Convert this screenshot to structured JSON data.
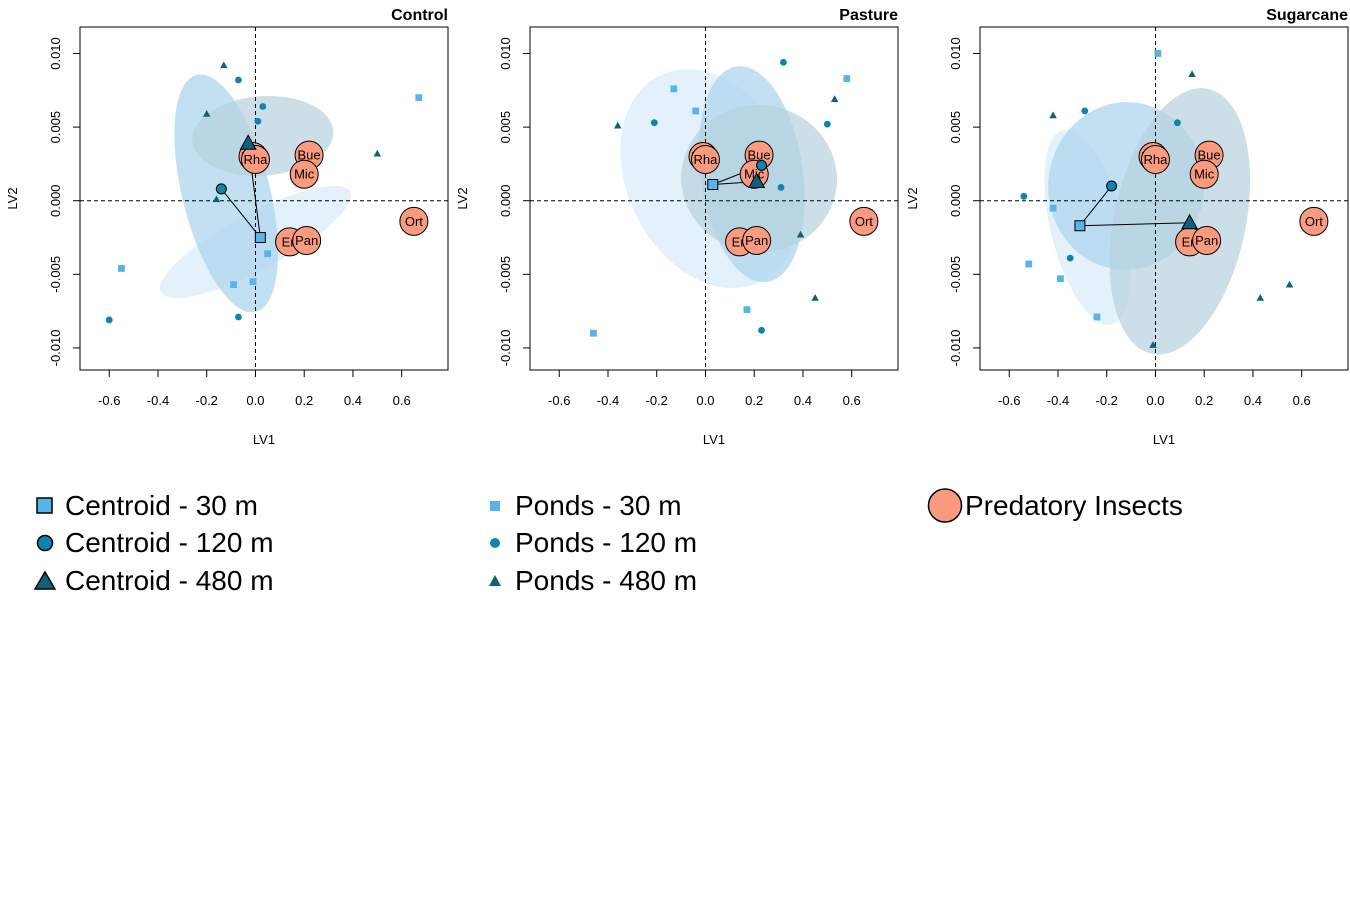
{
  "colors": {
    "light": "#56b4e9",
    "mid": "#0f84b0",
    "dark": "#0e6178",
    "predator": "#fa9a7e",
    "ellipse_light": "#d7ebf8",
    "ellipse_mid": "#a9d3ec",
    "ellipse_dark": "#b7d1de"
  },
  "legend": {
    "centroids": [
      {
        "label": "Centroid - 30 m",
        "shape": "square"
      },
      {
        "label": "Centroid - 120 m",
        "shape": "circle"
      },
      {
        "label": "Centroid - 480 m",
        "shape": "triangle"
      }
    ],
    "ponds": [
      {
        "label": "Ponds - 30 m",
        "shape": "square"
      },
      {
        "label": "Ponds - 120 m",
        "shape": "circle"
      },
      {
        "label": "Ponds - 480 m",
        "shape": "triangle"
      }
    ],
    "predators": {
      "label": "Predatory Insects",
      "shape": "big-circle"
    }
  },
  "chart_data": [
    {
      "type": "scatter",
      "title": "Control",
      "xlabel": "LV1",
      "ylabel": "LV2",
      "xlim": [
        -0.72,
        0.79
      ],
      "ylim": [
        -0.0115,
        0.0118
      ],
      "xticks": [
        "-0.6",
        "-0.4",
        "-0.2",
        "0.0",
        "0.2",
        "0.4",
        "0.6"
      ],
      "xtick_values": [
        -0.6,
        -0.4,
        -0.2,
        0.0,
        0.2,
        0.4,
        0.6
      ],
      "yticks": [
        "-0.010",
        "-0.005",
        "0.000",
        "0.005",
        "0.010"
      ],
      "ytick_values": [
        -0.01,
        -0.005,
        0.0,
        0.005,
        0.01
      ],
      "reference_lines": {
        "x": 0,
        "y": 0
      },
      "ellipses": [
        {
          "group": "30 m",
          "cx": 0.0,
          "cy": -0.0028,
          "rx": 0.44,
          "ry": 0.0019,
          "angle": 28,
          "fill": "light"
        },
        {
          "group": "120 m",
          "cx": -0.12,
          "cy": 0.0005,
          "rx": 0.18,
          "ry": 0.0083,
          "angle": 14,
          "fill": "mid"
        },
        {
          "group": "480 m",
          "cx": 0.03,
          "cy": 0.0044,
          "rx": 0.29,
          "ry": 0.0027,
          "angle": 4,
          "fill": "dark"
        }
      ],
      "centroids": [
        {
          "group": "30 m",
          "x": 0.02,
          "y": -0.0025
        },
        {
          "group": "120 m",
          "x": -0.14,
          "y": 0.0008
        },
        {
          "group": "480 m",
          "x": -0.03,
          "y": 0.0039
        }
      ],
      "ponds": [
        {
          "group": "30 m",
          "x": -0.55,
          "y": -0.0046
        },
        {
          "group": "30 m",
          "x": -0.09,
          "y": -0.0057
        },
        {
          "group": "30 m",
          "x": -0.01,
          "y": -0.0055
        },
        {
          "group": "30 m",
          "x": 0.05,
          "y": -0.0036
        },
        {
          "group": "30 m",
          "x": 0.67,
          "y": 0.007
        },
        {
          "group": "120 m",
          "x": -0.6,
          "y": -0.0081
        },
        {
          "group": "120 m",
          "x": -0.07,
          "y": -0.0079
        },
        {
          "group": "120 m",
          "x": -0.07,
          "y": 0.0082
        },
        {
          "group": "120 m",
          "x": 0.03,
          "y": 0.0064
        },
        {
          "group": "120 m",
          "x": 0.01,
          "y": 0.0054
        },
        {
          "group": "480 m",
          "x": -0.13,
          "y": 0.0092
        },
        {
          "group": "480 m",
          "x": -0.2,
          "y": 0.0059
        },
        {
          "group": "480 m",
          "x": -0.16,
          "y": 0.0001
        },
        {
          "group": "480 m",
          "x": 0.5,
          "y": 0.0032
        }
      ],
      "predators": [
        {
          "label": "Rha",
          "x": -0.01,
          "y": 0.003
        },
        {
          "label": "Rha",
          "x": 0.0,
          "y": 0.0028
        },
        {
          "label": "Bue",
          "x": 0.22,
          "y": 0.0031
        },
        {
          "label": "Mic",
          "x": 0.2,
          "y": 0.0018
        },
        {
          "label": "Eri",
          "x": 0.14,
          "y": -0.0028
        },
        {
          "label": "Pan",
          "x": 0.21,
          "y": -0.0027
        },
        {
          "label": "Ort",
          "x": 0.65,
          "y": -0.0014
        }
      ]
    },
    {
      "type": "scatter",
      "title": "Pasture",
      "xlabel": "LV1",
      "ylabel": "LV2",
      "xlim": [
        -0.72,
        0.79
      ],
      "ylim": [
        -0.0115,
        0.0118
      ],
      "xticks": [
        "-0.6",
        "-0.4",
        "-0.2",
        "0.0",
        "0.2",
        "0.4",
        "0.6"
      ],
      "xtick_values": [
        -0.6,
        -0.4,
        -0.2,
        0.0,
        0.2,
        0.4,
        0.6
      ],
      "yticks": [
        "-0.010",
        "-0.005",
        "0.000",
        "0.005",
        "0.010"
      ],
      "ytick_values": [
        -0.01,
        -0.005,
        0.0,
        0.005,
        0.01
      ],
      "reference_lines": {
        "x": 0,
        "y": 0
      },
      "ellipses": [
        {
          "group": "30 m",
          "cx": 0.02,
          "cy": 0.0015,
          "rx": 0.34,
          "ry": 0.0078,
          "angle": 26,
          "fill": "light"
        },
        {
          "group": "120 m",
          "cx": 0.19,
          "cy": 0.0018,
          "rx": 0.21,
          "ry": 0.0074,
          "angle": 8,
          "fill": "mid"
        },
        {
          "group": "480 m",
          "cx": 0.22,
          "cy": 0.0015,
          "rx": 0.32,
          "ry": 0.005,
          "angle": -6,
          "fill": "dark"
        }
      ],
      "centroids": [
        {
          "group": "30 m",
          "x": 0.03,
          "y": 0.0011
        },
        {
          "group": "120 m",
          "x": 0.23,
          "y": 0.0024
        },
        {
          "group": "480 m",
          "x": 0.21,
          "y": 0.0013
        }
      ],
      "ponds": [
        {
          "group": "30 m",
          "x": -0.46,
          "y": -0.009
        },
        {
          "group": "30 m",
          "x": -0.13,
          "y": 0.0076
        },
        {
          "group": "30 m",
          "x": -0.04,
          "y": 0.0061
        },
        {
          "group": "30 m",
          "x": 0.17,
          "y": -0.0074
        },
        {
          "group": "30 m",
          "x": 0.58,
          "y": 0.0083
        },
        {
          "group": "120 m",
          "x": -0.21,
          "y": 0.0053
        },
        {
          "group": "120 m",
          "x": 0.32,
          "y": 0.0094
        },
        {
          "group": "120 m",
          "x": 0.31,
          "y": 0.0009
        },
        {
          "group": "120 m",
          "x": 0.5,
          "y": 0.0052
        },
        {
          "group": "120 m",
          "x": 0.23,
          "y": -0.0088
        },
        {
          "group": "480 m",
          "x": -0.36,
          "y": 0.0051
        },
        {
          "group": "480 m",
          "x": 0.53,
          "y": 0.0069
        },
        {
          "group": "480 m",
          "x": 0.39,
          "y": -0.0023
        },
        {
          "group": "480 m",
          "x": 0.45,
          "y": -0.0066
        }
      ],
      "predators": [
        {
          "label": "Rha",
          "x": -0.01,
          "y": 0.003
        },
        {
          "label": "Rha",
          "x": 0.0,
          "y": 0.0028
        },
        {
          "label": "Bue",
          "x": 0.22,
          "y": 0.0031
        },
        {
          "label": "Mic",
          "x": 0.2,
          "y": 0.0018
        },
        {
          "label": "Eri",
          "x": 0.14,
          "y": -0.0028
        },
        {
          "label": "Pan",
          "x": 0.21,
          "y": -0.0027
        },
        {
          "label": "Ort",
          "x": 0.65,
          "y": -0.0014
        }
      ]
    },
    {
      "type": "scatter",
      "title": "Sugarcane",
      "xlabel": "LV1",
      "ylabel": "LV2",
      "xlim": [
        -0.72,
        0.79
      ],
      "ylim": [
        -0.0115,
        0.0118
      ],
      "xticks": [
        "-0.6",
        "-0.4",
        "-0.2",
        "0.0",
        "0.2",
        "0.4",
        "0.6"
      ],
      "xtick_values": [
        -0.6,
        -0.4,
        -0.2,
        0.0,
        0.2,
        0.4,
        0.6
      ],
      "yticks": [
        "-0.010",
        "-0.005",
        "0.000",
        "0.005",
        "0.010"
      ],
      "ytick_values": [
        -0.01,
        -0.005,
        0.0,
        0.005,
        0.01
      ],
      "reference_lines": {
        "x": 0,
        "y": 0
      },
      "ellipses": [
        {
          "group": "30 m",
          "cx": -0.28,
          "cy": -0.0018,
          "rx": 0.15,
          "ry": 0.0068,
          "angle": 14,
          "fill": "light"
        },
        {
          "group": "120 m",
          "cx": -0.12,
          "cy": 0.001,
          "rx": 0.32,
          "ry": 0.0057,
          "angle": -4,
          "fill": "mid"
        },
        {
          "group": "480 m",
          "cx": 0.1,
          "cy": -0.0014,
          "rx": 0.27,
          "ry": 0.0092,
          "angle": -12,
          "fill": "dark"
        }
      ],
      "centroids": [
        {
          "group": "30 m",
          "x": -0.31,
          "y": -0.0017
        },
        {
          "group": "120 m",
          "x": -0.18,
          "y": 0.001
        },
        {
          "group": "480 m",
          "x": 0.14,
          "y": -0.0015
        }
      ],
      "ponds": [
        {
          "group": "30 m",
          "x": 0.01,
          "y": 0.01
        },
        {
          "group": "30 m",
          "x": -0.42,
          "y": -0.0005
        },
        {
          "group": "30 m",
          "x": -0.52,
          "y": -0.0043
        },
        {
          "group": "30 m",
          "x": -0.39,
          "y": -0.0053
        },
        {
          "group": "30 m",
          "x": -0.24,
          "y": -0.0079
        },
        {
          "group": "120 m",
          "x": -0.54,
          "y": 0.0003
        },
        {
          "group": "120 m",
          "x": -0.29,
          "y": 0.0061
        },
        {
          "group": "120 m",
          "x": -0.35,
          "y": -0.0039
        },
        {
          "group": "120 m",
          "x": 0.09,
          "y": 0.0053
        },
        {
          "group": "480 m",
          "x": -0.42,
          "y": 0.0058
        },
        {
          "group": "480 m",
          "x": 0.15,
          "y": 0.0086
        },
        {
          "group": "480 m",
          "x": -0.01,
          "y": -0.0098
        },
        {
          "group": "480 m",
          "x": 0.43,
          "y": -0.0066
        },
        {
          "group": "480 m",
          "x": 0.55,
          "y": -0.0057
        }
      ],
      "predators": [
        {
          "label": "Rha",
          "x": -0.01,
          "y": 0.003
        },
        {
          "label": "Rha",
          "x": 0.0,
          "y": 0.0028
        },
        {
          "label": "Bue",
          "x": 0.22,
          "y": 0.0031
        },
        {
          "label": "Mic",
          "x": 0.2,
          "y": 0.0018
        },
        {
          "label": "Eri",
          "x": 0.14,
          "y": -0.0028
        },
        {
          "label": "Pan",
          "x": 0.21,
          "y": -0.0027
        },
        {
          "label": "Ort",
          "x": 0.65,
          "y": -0.0014
        }
      ]
    }
  ]
}
